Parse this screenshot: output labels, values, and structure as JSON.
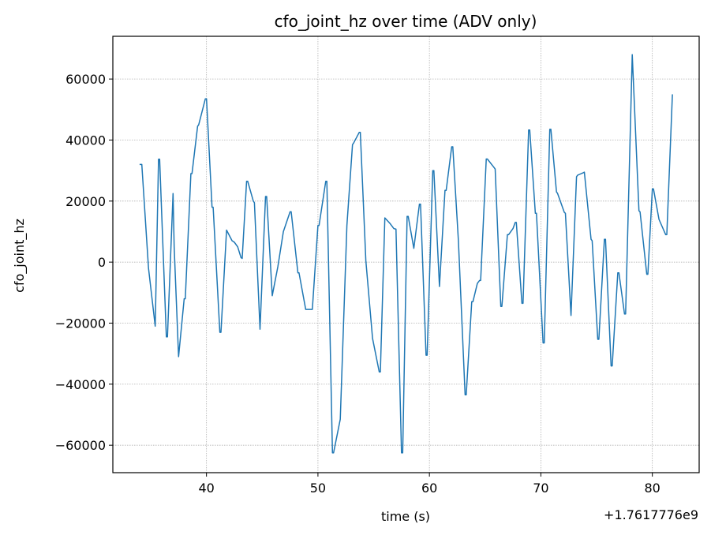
{
  "chart_data": {
    "type": "line",
    "title": "cfo_joint_hz over time (ADV only)",
    "xlabel": "time (s)",
    "ylabel": "cfo_joint_hz",
    "x_offset_label": "+1.7617776e9",
    "xlim": [
      31.6,
      84.2
    ],
    "ylim": [
      -69000,
      74000
    ],
    "xticks": [
      40,
      50,
      60,
      70,
      80
    ],
    "yticks": [
      -60000,
      -40000,
      -20000,
      0,
      20000,
      40000,
      60000
    ],
    "grid": true,
    "series": [
      {
        "color": "#1f77b4",
        "points": [
          [
            34.0,
            32000
          ],
          [
            34.2,
            32000
          ],
          [
            34.8,
            -2000
          ],
          [
            35.4,
            -21000
          ],
          [
            35.7,
            33700
          ],
          [
            35.8,
            33700
          ],
          [
            36.4,
            -24500
          ],
          [
            36.5,
            -24500
          ],
          [
            37.0,
            22500
          ],
          [
            37.1,
            5000
          ],
          [
            37.5,
            -31000
          ],
          [
            38.0,
            -12000
          ],
          [
            38.1,
            -12000
          ],
          [
            38.6,
            29000
          ],
          [
            38.7,
            29000
          ],
          [
            39.2,
            44500
          ],
          [
            39.3,
            45000
          ],
          [
            39.9,
            53500
          ],
          [
            40.0,
            53500
          ],
          [
            40.5,
            18000
          ],
          [
            40.6,
            18000
          ],
          [
            41.2,
            -23000
          ],
          [
            41.3,
            -23000
          ],
          [
            41.8,
            10500
          ],
          [
            42.3,
            7000
          ],
          [
            42.5,
            6500
          ],
          [
            42.8,
            5000
          ],
          [
            43.1,
            1500
          ],
          [
            43.2,
            1200
          ],
          [
            43.6,
            26500
          ],
          [
            43.7,
            26500
          ],
          [
            44.2,
            20000
          ],
          [
            44.3,
            19500
          ],
          [
            44.8,
            -22000
          ],
          [
            45.3,
            21500
          ],
          [
            45.4,
            21500
          ],
          [
            45.9,
            -11000
          ],
          [
            46.4,
            -1500
          ],
          [
            46.9,
            10000
          ],
          [
            47.5,
            16500
          ],
          [
            47.6,
            16500
          ],
          [
            48.2,
            -3500
          ],
          [
            48.3,
            -3500
          ],
          [
            48.9,
            -15500
          ],
          [
            49.4,
            -15500
          ],
          [
            49.5,
            -15500
          ],
          [
            50.0,
            12000
          ],
          [
            50.1,
            12000
          ],
          [
            50.7,
            26500
          ],
          [
            50.8,
            26500
          ],
          [
            51.3,
            -62500
          ],
          [
            51.4,
            -62500
          ],
          [
            52.0,
            -51500
          ],
          [
            52.6,
            12000
          ],
          [
            53.1,
            38500
          ],
          [
            53.2,
            39000
          ],
          [
            53.7,
            42500
          ],
          [
            53.8,
            42500
          ],
          [
            54.3,
            500
          ],
          [
            54.9,
            -25000
          ],
          [
            55.5,
            -36000
          ],
          [
            55.6,
            -36000
          ],
          [
            56.0,
            14500
          ],
          [
            56.5,
            12500
          ],
          [
            56.8,
            11000
          ],
          [
            57.0,
            10800
          ],
          [
            57.5,
            -62500
          ],
          [
            57.6,
            -62500
          ],
          [
            58.0,
            15000
          ],
          [
            58.1,
            15000
          ],
          [
            58.6,
            4500
          ],
          [
            59.1,
            19000
          ],
          [
            59.2,
            19000
          ],
          [
            59.7,
            -30500
          ],
          [
            59.8,
            -30500
          ],
          [
            60.3,
            30000
          ],
          [
            60.4,
            30000
          ],
          [
            60.9,
            -8000
          ],
          [
            61.4,
            23500
          ],
          [
            61.5,
            23500
          ],
          [
            62.0,
            37800
          ],
          [
            62.1,
            37800
          ],
          [
            62.6,
            7000
          ],
          [
            63.2,
            -43500
          ],
          [
            63.3,
            -43500
          ],
          [
            63.8,
            -13000
          ],
          [
            63.9,
            -13000
          ],
          [
            64.3,
            -7000
          ],
          [
            64.5,
            -6000
          ],
          [
            64.6,
            -6000
          ],
          [
            65.1,
            33800
          ],
          [
            65.2,
            33800
          ],
          [
            65.8,
            31000
          ],
          [
            65.9,
            30500
          ],
          [
            66.4,
            -14500
          ],
          [
            66.5,
            -14500
          ],
          [
            67.0,
            9000
          ],
          [
            67.1,
            9000
          ],
          [
            67.5,
            11000
          ],
          [
            67.7,
            13000
          ],
          [
            67.8,
            13000
          ],
          [
            68.3,
            -13500
          ],
          [
            68.4,
            -13500
          ],
          [
            68.9,
            43300
          ],
          [
            69.0,
            43300
          ],
          [
            69.5,
            16000
          ],
          [
            69.6,
            16000
          ],
          [
            70.2,
            -26500
          ],
          [
            70.3,
            -26500
          ],
          [
            70.8,
            43500
          ],
          [
            70.9,
            43500
          ],
          [
            71.4,
            23000
          ],
          [
            71.5,
            22500
          ],
          [
            72.1,
            16300
          ],
          [
            72.2,
            16000
          ],
          [
            72.7,
            -17500
          ],
          [
            73.2,
            28000
          ],
          [
            73.3,
            28500
          ],
          [
            73.8,
            29300
          ],
          [
            73.9,
            29500
          ],
          [
            74.5,
            7500
          ],
          [
            74.6,
            7000
          ],
          [
            75.1,
            -25300
          ],
          [
            75.2,
            -25300
          ],
          [
            75.7,
            7500
          ],
          [
            75.8,
            7500
          ],
          [
            76.3,
            -34000
          ],
          [
            76.4,
            -34000
          ],
          [
            76.9,
            -3500
          ],
          [
            77.0,
            -3500
          ],
          [
            77.5,
            -17000
          ],
          [
            77.6,
            -17000
          ],
          [
            78.2,
            68000
          ],
          [
            78.8,
            16800
          ],
          [
            78.9,
            16500
          ],
          [
            79.5,
            -4000
          ],
          [
            79.6,
            -4000
          ],
          [
            80.0,
            24000
          ],
          [
            80.1,
            24000
          ],
          [
            80.6,
            14000
          ],
          [
            81.2,
            9000
          ],
          [
            81.3,
            9000
          ],
          [
            81.8,
            55000
          ]
        ]
      }
    ]
  }
}
